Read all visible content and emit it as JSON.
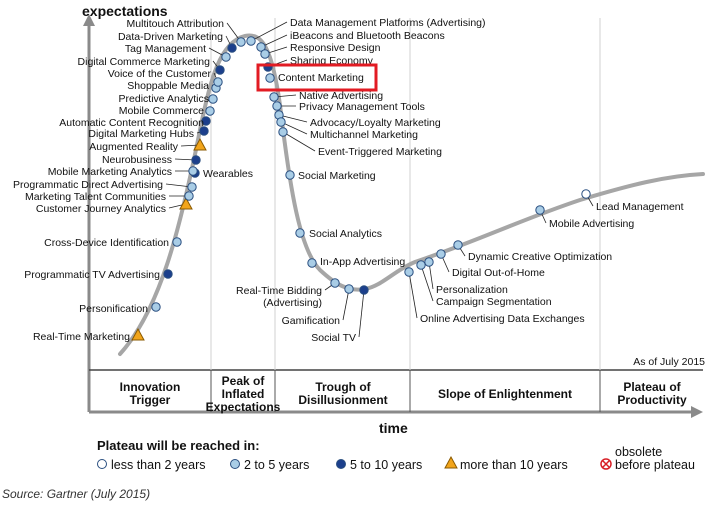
{
  "chart_data": {
    "type": "scatter",
    "title": "",
    "ylabel": "expectations",
    "xlabel": "time",
    "as_of": "As of July 2015",
    "source": "Source: Gartner (July 2015)",
    "phases": [
      [
        "Innovation",
        "Trigger"
      ],
      [
        "Peak of",
        "Inflated",
        "Expectations"
      ],
      [
        "Trough of",
        "Disillusionment"
      ],
      [
        "Slope of Enlightenment"
      ],
      [
        "Plateau of",
        "Productivity"
      ]
    ],
    "legend": {
      "title": "Plateau will be reached in:",
      "items": [
        {
          "key": "lt2",
          "label": "less than 2 years"
        },
        {
          "key": "2to5",
          "label": "2 to 5 years"
        },
        {
          "key": "5to10",
          "label": "5 to 10 years"
        },
        {
          "key": "gt10",
          "label": "more than 10 years"
        },
        {
          "key": "obsolete",
          "label": [
            "obsolete",
            "before plateau"
          ]
        }
      ]
    },
    "colors": {
      "lt2": "#ffffff",
      "2to5": "#a9cde6",
      "5to10": "#1c3f8c",
      "gt10": "#f2a51b",
      "obsolete": "#d81f26",
      "curve": "#a6a6a6",
      "highlight": "#e21b23"
    },
    "highlighted": "Content Marketing",
    "technologies": [
      {
        "name": "Real-Time Marketing",
        "plateau": "gt10"
      },
      {
        "name": "Personification",
        "plateau": "2to5"
      },
      {
        "name": "Programmatic TV Advertising",
        "plateau": "5to10"
      },
      {
        "name": "Cross-Device Identification",
        "plateau": "2to5"
      },
      {
        "name": "Customer Journey Analytics",
        "plateau": "gt10"
      },
      {
        "name": "Marketing Talent Communities",
        "plateau": "2to5"
      },
      {
        "name": "Programmatic Direct Advertising",
        "plateau": "2to5"
      },
      {
        "name": "Wearables",
        "plateau": "5to10"
      },
      {
        "name": "Mobile Marketing Analytics",
        "plateau": "2to5"
      },
      {
        "name": "Neurobusiness",
        "plateau": "5to10"
      },
      {
        "name": "Augmented Reality",
        "plateau": "gt10"
      },
      {
        "name": "Digital Marketing Hubs",
        "plateau": "5to10"
      },
      {
        "name": "Automatic Content Recognition",
        "plateau": "5to10"
      },
      {
        "name": "Mobile Commerce",
        "plateau": "2to5"
      },
      {
        "name": "Predictive Analytics",
        "plateau": "2to5"
      },
      {
        "name": "Shoppable Media",
        "plateau": "2to5"
      },
      {
        "name": "Voice of the Customer",
        "plateau": "2to5"
      },
      {
        "name": "Digital Commerce Marketing",
        "plateau": "5to10"
      },
      {
        "name": "Tag Management",
        "plateau": "2to5"
      },
      {
        "name": "Data-Driven Marketing",
        "plateau": "5to10"
      },
      {
        "name": "Multitouch Attribution",
        "plateau": "2to5"
      },
      {
        "name": "Data Management Platforms (Advertising)",
        "plateau": "2to5"
      },
      {
        "name": "iBeacons and Bluetooth Beacons",
        "plateau": "2to5"
      },
      {
        "name": "Responsive Design",
        "plateau": "2to5"
      },
      {
        "name": "Sharing Economy",
        "plateau": "5to10"
      },
      {
        "name": "Content Marketing",
        "plateau": "2to5"
      },
      {
        "name": "Native Advertising",
        "plateau": "2to5"
      },
      {
        "name": "Privacy Management Tools",
        "plateau": "2to5"
      },
      {
        "name": "Advocacy/Loyalty Marketing",
        "plateau": "2to5"
      },
      {
        "name": "Multichannel Marketing",
        "plateau": "2to5"
      },
      {
        "name": "Event-Triggered Marketing",
        "plateau": "2to5"
      },
      {
        "name": "Social Marketing",
        "plateau": "2to5"
      },
      {
        "name": "Social Analytics",
        "plateau": "2to5"
      },
      {
        "name": "In-App Advertising",
        "plateau": "2to5"
      },
      {
        "name": "Real-Time Bidding (Advertising)",
        "plateau": "2to5"
      },
      {
        "name": "Gamification",
        "plateau": "2to5"
      },
      {
        "name": "Social TV",
        "plateau": "5to10"
      },
      {
        "name": "Online Advertising Data Exchanges",
        "plateau": "2to5"
      },
      {
        "name": "Campaign Segmentation",
        "plateau": "2to5"
      },
      {
        "name": "Personalization",
        "plateau": "2to5"
      },
      {
        "name": "Digital Out-of-Home",
        "plateau": "2to5"
      },
      {
        "name": "Dynamic Creative Optimization",
        "plateau": "2to5"
      },
      {
        "name": "Mobile Advertising",
        "plateau": "2to5"
      },
      {
        "name": "Lead Management",
        "plateau": "lt2"
      }
    ]
  }
}
